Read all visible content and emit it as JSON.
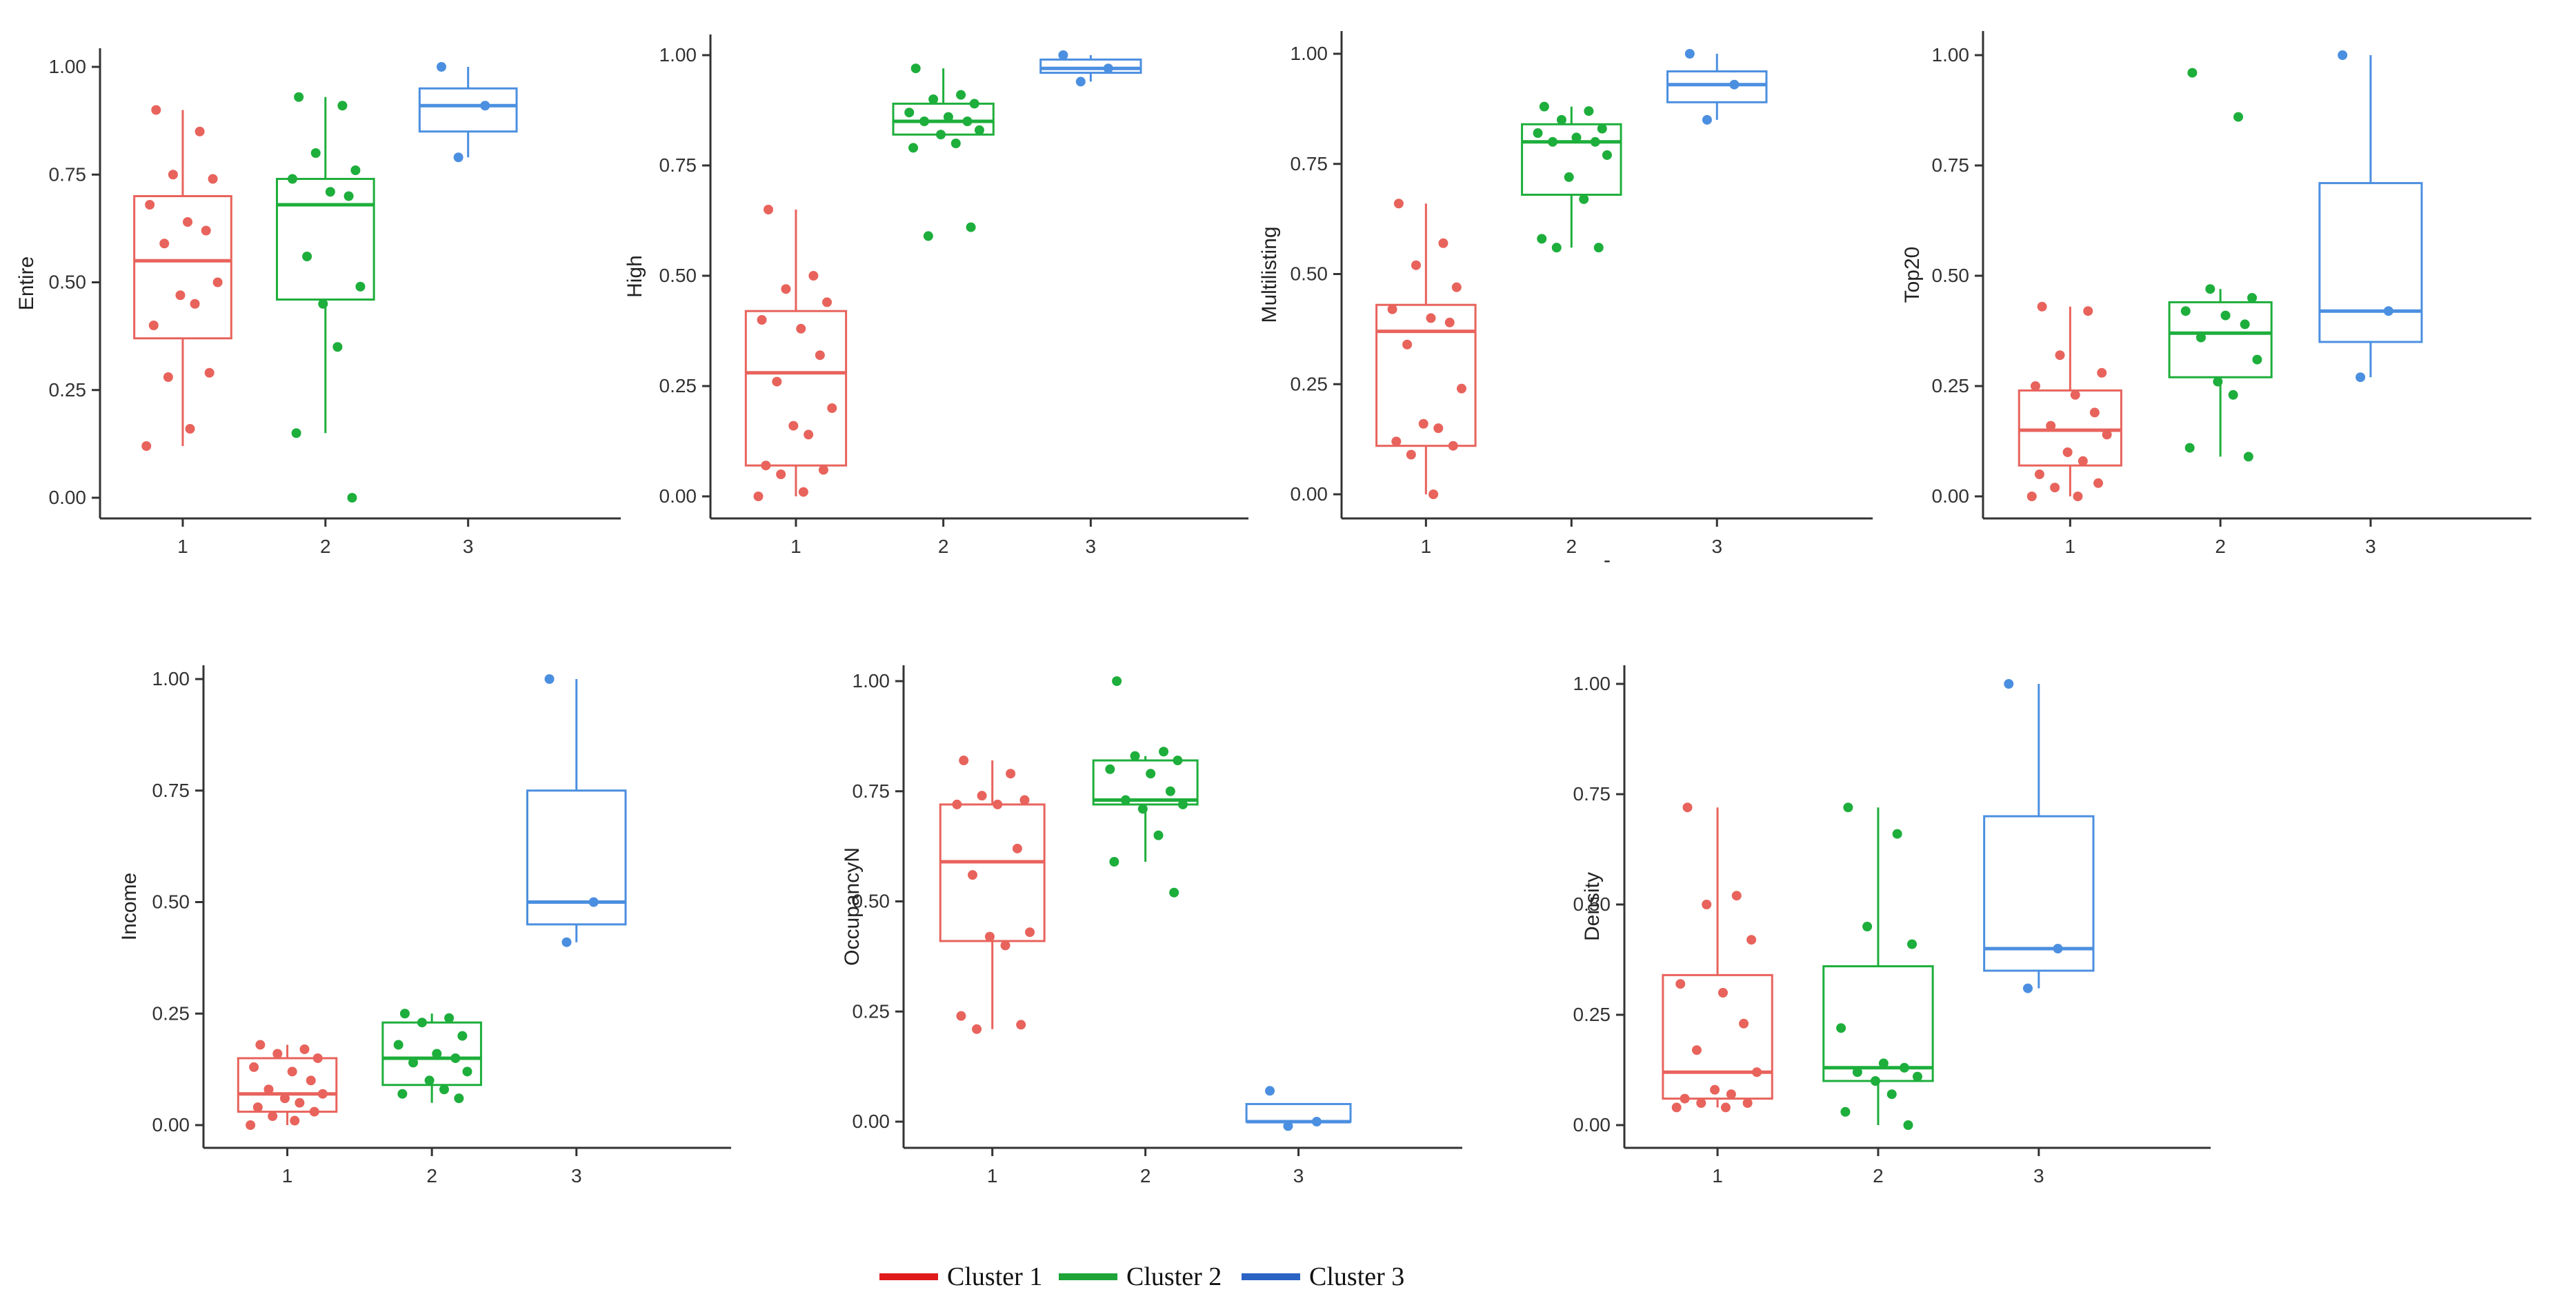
{
  "colors": {
    "cluster1": "#E8635C",
    "cluster2": "#1DAE3B",
    "cluster3": "#4B8FE0",
    "legend1": "#E01A1A",
    "legend2": "#1FA43A",
    "legend3": "#2A63C4"
  },
  "legend": {
    "items": [
      "Cluster 1",
      "Cluster 2",
      "Cluster 3"
    ]
  },
  "chart_data": [
    {
      "type": "box",
      "ylabel": "Entire",
      "xlabel": "",
      "categories": [
        "1",
        "2",
        "3"
      ],
      "ylim": [
        0,
        1
      ],
      "yticks": [
        "0.00",
        "0.25",
        "0.50",
        "0.75",
        "1.00"
      ],
      "boxes": [
        {
          "q1": 0.37,
          "median": 0.55,
          "q3": 0.7,
          "lo": 0.12,
          "hi": 0.9,
          "points": [
            0.9,
            0.85,
            0.75,
            0.74,
            0.68,
            0.64,
            0.62,
            0.59,
            0.5,
            0.47,
            0.45,
            0.4,
            0.29,
            0.28,
            0.16,
            0.12
          ]
        },
        {
          "q1": 0.46,
          "median": 0.68,
          "q3": 0.74,
          "lo": 0.15,
          "hi": 0.93,
          "points": [
            0.93,
            0.91,
            0.8,
            0.76,
            0.74,
            0.71,
            0.7,
            0.56,
            0.49,
            0.45,
            0.35,
            0.15,
            0.0
          ]
        },
        {
          "q1": 0.85,
          "median": 0.91,
          "q3": 0.95,
          "lo": 0.79,
          "hi": 1.0,
          "points": [
            1.0,
            0.91,
            0.79
          ]
        }
      ]
    },
    {
      "type": "box",
      "ylabel": "High",
      "xlabel": "",
      "categories": [
        "1",
        "2",
        "3"
      ],
      "ylim": [
        0,
        1
      ],
      "yticks": [
        "0.00",
        "0.25",
        "0.50",
        "0.75",
        "1.00"
      ],
      "boxes": [
        {
          "q1": 0.07,
          "median": 0.28,
          "q3": 0.42,
          "lo": 0.0,
          "hi": 0.65,
          "points": [
            0.65,
            0.5,
            0.47,
            0.44,
            0.4,
            0.38,
            0.32,
            0.26,
            0.2,
            0.16,
            0.14,
            0.07,
            0.06,
            0.05,
            0.01,
            0.0
          ]
        },
        {
          "q1": 0.82,
          "median": 0.85,
          "q3": 0.89,
          "lo": 0.82,
          "hi": 0.97,
          "points": [
            0.97,
            0.91,
            0.9,
            0.89,
            0.87,
            0.86,
            0.85,
            0.85,
            0.83,
            0.82,
            0.8,
            0.79,
            0.61,
            0.59
          ]
        },
        {
          "q1": 0.96,
          "median": 0.97,
          "q3": 0.99,
          "lo": 0.94,
          "hi": 1.0,
          "points": [
            1.0,
            0.97,
            0.94
          ]
        }
      ]
    },
    {
      "type": "box",
      "ylabel": "Multilisting",
      "xlabel": "-",
      "categories": [
        "1",
        "2",
        "3"
      ],
      "ylim": [
        0,
        1
      ],
      "yticks": [
        "0.00",
        "0.25",
        "0.50",
        "0.75",
        "1.00"
      ],
      "boxes": [
        {
          "q1": 0.11,
          "median": 0.37,
          "q3": 0.43,
          "lo": 0.0,
          "hi": 0.66,
          "points": [
            0.66,
            0.57,
            0.52,
            0.47,
            0.42,
            0.4,
            0.39,
            0.34,
            0.24,
            0.16,
            0.15,
            0.12,
            0.11,
            0.09,
            0.0
          ]
        },
        {
          "q1": 0.68,
          "median": 0.8,
          "q3": 0.84,
          "lo": 0.56,
          "hi": 0.88,
          "points": [
            0.88,
            0.87,
            0.85,
            0.83,
            0.82,
            0.81,
            0.8,
            0.8,
            0.77,
            0.72,
            0.67,
            0.58,
            0.56,
            0.56
          ]
        },
        {
          "q1": 0.89,
          "median": 0.93,
          "q3": 0.96,
          "lo": 0.85,
          "hi": 1.0,
          "points": [
            1.0,
            0.93,
            0.85
          ]
        }
      ]
    },
    {
      "type": "box",
      "ylabel": "Top20",
      "xlabel": "",
      "categories": [
        "1",
        "2",
        "3"
      ],
      "ylim": [
        0,
        1
      ],
      "yticks": [
        "0.00",
        "0.25",
        "0.50",
        "0.75",
        "1.00"
      ],
      "boxes": [
        {
          "q1": 0.07,
          "median": 0.15,
          "q3": 0.24,
          "lo": 0.0,
          "hi": 0.43,
          "points": [
            0.43,
            0.42,
            0.32,
            0.28,
            0.25,
            0.23,
            0.19,
            0.16,
            0.14,
            0.1,
            0.08,
            0.05,
            0.03,
            0.02,
            0.0,
            0.0
          ]
        },
        {
          "q1": 0.27,
          "median": 0.37,
          "q3": 0.44,
          "lo": 0.09,
          "hi": 0.47,
          "points": [
            0.96,
            0.86,
            0.47,
            0.45,
            0.42,
            0.41,
            0.39,
            0.36,
            0.31,
            0.26,
            0.23,
            0.11,
            0.09
          ]
        },
        {
          "q1": 0.35,
          "median": 0.42,
          "q3": 0.71,
          "lo": 0.27,
          "hi": 1.0,
          "points": [
            1.0,
            0.42,
            0.27
          ]
        }
      ]
    },
    {
      "type": "box",
      "ylabel": "Income",
      "xlabel": "",
      "categories": [
        "1",
        "2",
        "3"
      ],
      "ylim": [
        0,
        1
      ],
      "yticks": [
        "0.00",
        "0.25",
        "0.50",
        "0.75",
        "1.00"
      ],
      "boxes": [
        {
          "q1": 0.03,
          "median": 0.07,
          "q3": 0.15,
          "lo": 0.0,
          "hi": 0.18,
          "points": [
            0.18,
            0.17,
            0.16,
            0.15,
            0.13,
            0.12,
            0.1,
            0.08,
            0.07,
            0.06,
            0.05,
            0.04,
            0.03,
            0.02,
            0.01,
            0.0
          ]
        },
        {
          "q1": 0.09,
          "median": 0.15,
          "q3": 0.23,
          "lo": 0.05,
          "hi": 0.25,
          "points": [
            0.25,
            0.24,
            0.23,
            0.2,
            0.18,
            0.16,
            0.15,
            0.14,
            0.12,
            0.1,
            0.08,
            0.07,
            0.06
          ]
        },
        {
          "q1": 0.45,
          "median": 0.5,
          "q3": 0.75,
          "lo": 0.41,
          "hi": 1.0,
          "points": [
            1.0,
            0.5,
            0.41
          ]
        }
      ]
    },
    {
      "type": "box",
      "ylabel": "OccupancyN",
      "xlabel": "",
      "categories": [
        "1",
        "2",
        "3"
      ],
      "ylim": [
        0,
        1
      ],
      "yticks": [
        "0.00",
        "0.25",
        "0.50",
        "0.75",
        "1.00"
      ],
      "boxes": [
        {
          "q1": 0.41,
          "median": 0.59,
          "q3": 0.72,
          "lo": 0.21,
          "hi": 0.82,
          "points": [
            0.82,
            0.79,
            0.74,
            0.73,
            0.72,
            0.72,
            0.62,
            0.56,
            0.43,
            0.42,
            0.4,
            0.24,
            0.22,
            0.21
          ]
        },
        {
          "q1": 0.72,
          "median": 0.73,
          "q3": 0.82,
          "lo": 0.59,
          "hi": 0.83,
          "points": [
            1.0,
            0.84,
            0.83,
            0.82,
            0.8,
            0.79,
            0.75,
            0.73,
            0.72,
            0.71,
            0.65,
            0.59,
            0.52
          ]
        },
        {
          "q1": 0.0,
          "median": 0.0,
          "q3": 0.04,
          "lo": 0.0,
          "hi": 0.04,
          "points": [
            0.07,
            0.0,
            -0.01
          ]
        }
      ]
    },
    {
      "type": "box",
      "ylabel": "Density",
      "xlabel": "",
      "categories": [
        "1",
        "2",
        "3"
      ],
      "ylim": [
        0,
        1
      ],
      "yticks": [
        "0.00",
        "0.25",
        "0.50",
        "0.75",
        "1.00"
      ],
      "boxes": [
        {
          "q1": 0.06,
          "median": 0.12,
          "q3": 0.34,
          "lo": 0.04,
          "hi": 0.72,
          "points": [
            0.72,
            0.52,
            0.5,
            0.42,
            0.32,
            0.3,
            0.23,
            0.17,
            0.12,
            0.08,
            0.07,
            0.06,
            0.05,
            0.05,
            0.04,
            0.04
          ]
        },
        {
          "q1": 0.1,
          "median": 0.13,
          "q3": 0.36,
          "lo": 0.0,
          "hi": 0.72,
          "points": [
            0.72,
            0.66,
            0.45,
            0.41,
            0.22,
            0.14,
            0.13,
            0.12,
            0.11,
            0.1,
            0.07,
            0.03,
            0.0
          ]
        },
        {
          "q1": 0.35,
          "median": 0.4,
          "q3": 0.7,
          "lo": 0.31,
          "hi": 1.0,
          "points": [
            1.0,
            0.4,
            0.31
          ]
        }
      ]
    }
  ]
}
